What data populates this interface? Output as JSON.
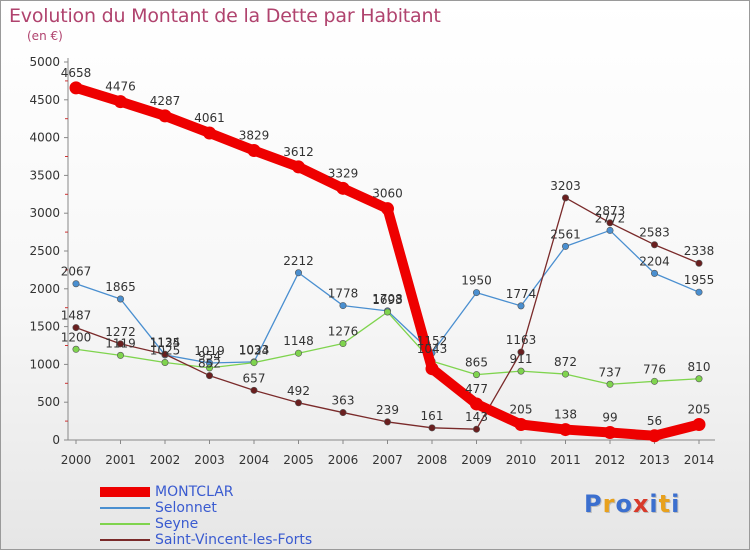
{
  "title": "Evolution du Montant de la Dette par Habitant",
  "subtitle": "(en €)",
  "logo": {
    "text": "Proxiti",
    "colors": [
      "#3b6fcf",
      "#e8a11d",
      "#3b6fcf",
      "#d83a2a",
      "#3b6fcf",
      "#e8a11d",
      "#3b6fcf"
    ]
  },
  "chart_data": {
    "type": "line",
    "x": [
      "2000",
      "2001",
      "2002",
      "2003",
      "2004",
      "2005",
      "2006",
      "2007",
      "2008",
      "2009",
      "2010",
      "2011",
      "2012",
      "2013",
      "2014"
    ],
    "ylim": [
      0,
      5000
    ],
    "yticks": [
      0,
      500,
      1000,
      1500,
      2000,
      2500,
      3000,
      3500,
      4000,
      4500,
      5000
    ],
    "grid": false,
    "legend_position": "bottom-left",
    "series": [
      {
        "name": "MONTCLAR",
        "color": "#ee0000",
        "marker": "#ee0000",
        "values": [
          4658,
          4476,
          4287,
          4061,
          3829,
          3612,
          3329,
          3060,
          943,
          477,
          205,
          138,
          99,
          56,
          205
        ],
        "labels": [
          "4658",
          "4476",
          "4287",
          "4061",
          "3829",
          "3612",
          "3329",
          "3060",
          "",
          "477",
          "205",
          "138",
          "99",
          "56",
          "205"
        ]
      },
      {
        "name": "Selonnet",
        "color": "#4a8fd0",
        "marker": "#4a8fd0",
        "values": [
          2067,
          1865,
          1125,
          1019,
          1033,
          2212,
          1778,
          1708,
          1152,
          1950,
          1774,
          2561,
          2772,
          2204,
          1955
        ],
        "labels": [
          "2067",
          "1865",
          "1125",
          "1019",
          "1033",
          "2212",
          "1778",
          "1708",
          "1152",
          "1950",
          "1774",
          "2561",
          "2772",
          "2204",
          "1955"
        ]
      },
      {
        "name": "Seyne",
        "color": "#7fd44e",
        "marker": "#7fd44e",
        "values": [
          1200,
          1119,
          1025,
          954,
          1024,
          1148,
          1276,
          1693,
          1043,
          865,
          911,
          872,
          737,
          776,
          810
        ],
        "labels": [
          "1200",
          "1119",
          "1025",
          "954",
          "1024",
          "1148",
          "1276",
          "1693",
          "1043",
          "865",
          "911",
          "872",
          "737",
          "776",
          "810"
        ]
      },
      {
        "name": "Saint-Vincent-les-Forts",
        "color": "#7a2a2a",
        "marker": "#6a1f1f",
        "values": [
          1487,
          1272,
          1134,
          852,
          657,
          492,
          363,
          239,
          161,
          143,
          1163,
          3203,
          2873,
          2583,
          2338
        ],
        "labels": [
          "1487",
          "1272",
          "1134",
          "852",
          "657",
          "492",
          "363",
          "239",
          "161",
          "143",
          "1163",
          "3203",
          "2873",
          "2583",
          "2338"
        ]
      }
    ]
  }
}
